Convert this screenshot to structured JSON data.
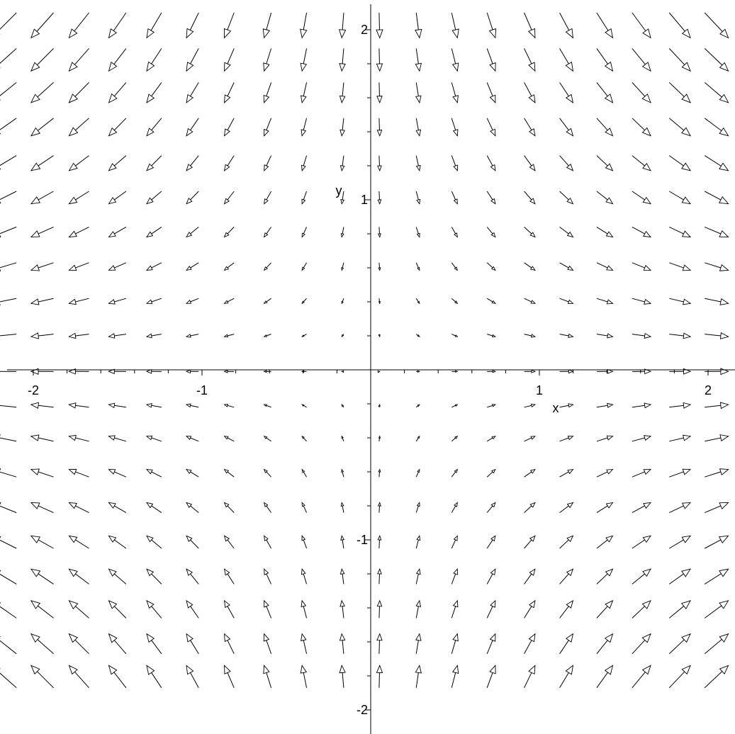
{
  "chart_data": {
    "type": "vector_field",
    "title": "",
    "xlabel": "x",
    "ylabel": "y",
    "xlim": [
      -2.13,
      2.13
    ],
    "ylim": [
      -2.13,
      2.17
    ],
    "x_ticks": [
      {
        "value": -2,
        "label": "-2"
      },
      {
        "value": -1,
        "label": "-1"
      },
      {
        "value": 1,
        "label": "1"
      },
      {
        "value": 2,
        "label": "2"
      }
    ],
    "y_ticks": [
      {
        "value": 2,
        "label": "2"
      },
      {
        "value": 1,
        "label": "1"
      },
      {
        "value": -1,
        "label": "-1"
      },
      {
        "value": -2,
        "label": "-2"
      }
    ],
    "field": {
      "u": "x",
      "v": "-y"
    },
    "grid_x": [
      -2.1,
      -1.88,
      -1.67,
      -1.45,
      -1.24,
      -1.02,
      -0.81,
      -0.59,
      -0.38,
      -0.16,
      0.05,
      0.27,
      0.48,
      0.69,
      0.91,
      1.12,
      1.34,
      1.55,
      1.77,
      1.98
    ],
    "grid_y": [
      2.1,
      1.89,
      1.69,
      1.48,
      1.26,
      1.05,
      0.84,
      0.63,
      0.42,
      0.21,
      -0.01,
      -0.22,
      -0.42,
      -0.63,
      -0.84,
      -1.05,
      -1.26,
      -1.46,
      -1.67,
      -1.87
    ],
    "arrow_color": "#000000",
    "arrowhead_fill": "#ffffff",
    "grid": false,
    "legend": "none"
  }
}
